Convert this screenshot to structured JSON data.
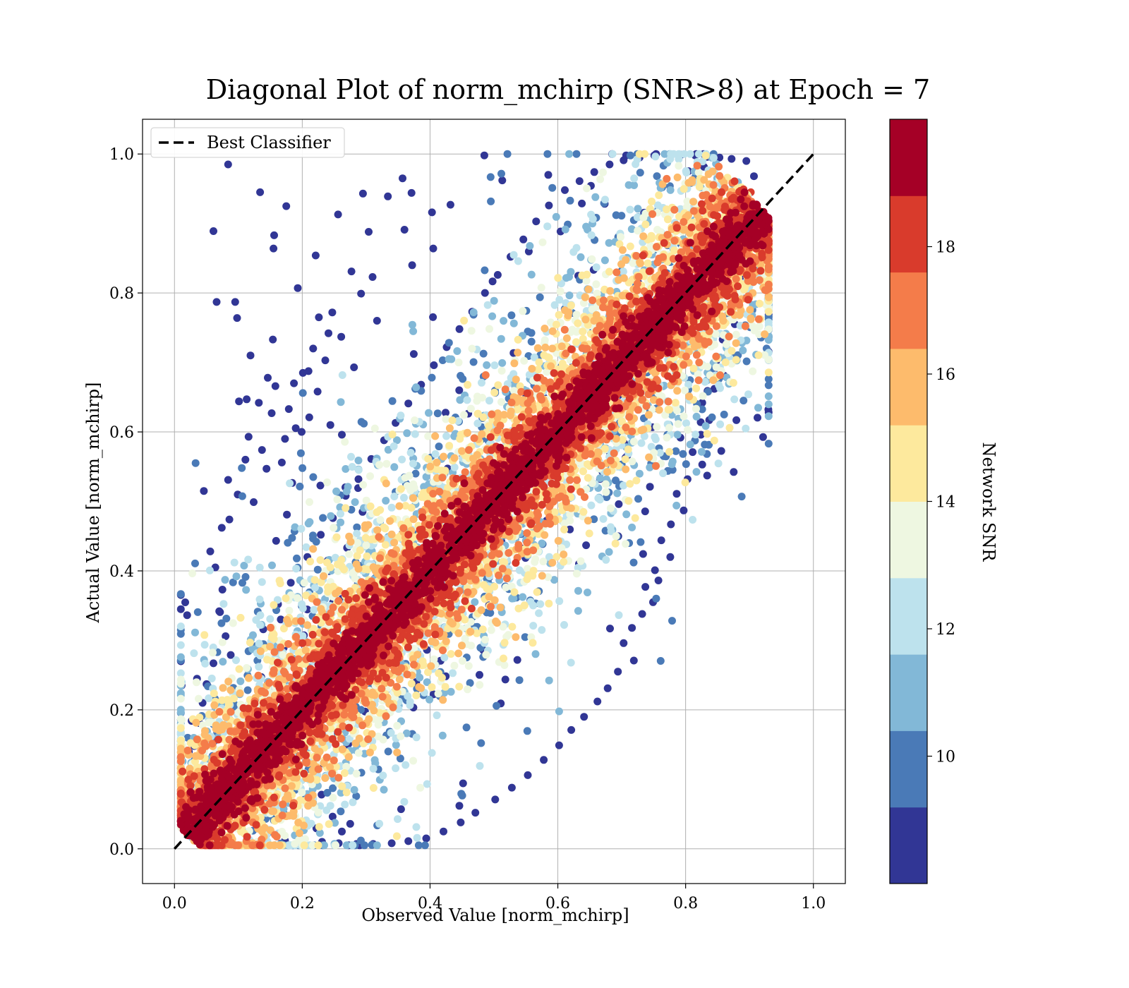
{
  "chart_data": {
    "type": "scatter",
    "title": "Diagonal Plot of norm_mchirp (SNR>8) at Epoch = 7",
    "xlabel": "Observed Value [norm_mchirp]",
    "ylabel": "Actual Value [norm_mchirp]",
    "xlim": [
      -0.05,
      1.05
    ],
    "ylim": [
      -0.05,
      1.05
    ],
    "xticks": [
      "0.0",
      "0.2",
      "0.4",
      "0.6",
      "0.8",
      "1.0"
    ],
    "yticks": [
      "0.0",
      "0.2",
      "0.4",
      "0.6",
      "0.8",
      "1.0"
    ],
    "grid": true,
    "reference_line": {
      "label": "Best Classifier",
      "x": [
        0.0,
        1.0
      ],
      "y": [
        0.0,
        1.0
      ],
      "style": "dashed",
      "color": "#000000"
    },
    "legend_position": "top-left",
    "colorbar": {
      "label": "Network SNR",
      "min": 8,
      "max": 20,
      "ticks": [
        "10",
        "12",
        "14",
        "16",
        "18"
      ],
      "bins": [
        {
          "from": 8,
          "to": 9.2,
          "color": "#313695"
        },
        {
          "from": 9.2,
          "to": 10.4,
          "color": "#4a7ab7"
        },
        {
          "from": 10.4,
          "to": 11.6,
          "color": "#82b8d7"
        },
        {
          "from": 11.6,
          "to": 12.8,
          "color": "#bde2ed"
        },
        {
          "from": 12.8,
          "to": 14.0,
          "color": "#eef7e1"
        },
        {
          "from": 14.0,
          "to": 15.2,
          "color": "#fde99d"
        },
        {
          "from": 15.2,
          "to": 16.4,
          "color": "#fdbb6c"
        },
        {
          "from": 16.4,
          "to": 17.6,
          "color": "#f47c4a"
        },
        {
          "from": 17.6,
          "to": 18.8,
          "color": "#d93b2c"
        },
        {
          "from": 18.8,
          "to": 20,
          "color": "#a50026"
        }
      ]
    },
    "series": [
      {
        "points_note_free": true,
        "points": [
          [
            0.084,
            0.985
          ],
          [
            0.134,
            0.945
          ],
          [
            0.175,
            0.925
          ],
          [
            0.061,
            0.889
          ],
          [
            0.156,
            0.883
          ],
          [
            0.155,
            0.864
          ],
          [
            0.095,
            0.787
          ],
          [
            0.066,
            0.787
          ],
          [
            0.193,
            0.807
          ],
          [
            0.098,
            0.764
          ],
          [
            0.154,
            0.733
          ],
          [
            0.119,
            0.71
          ],
          [
            0.113,
            0.647
          ],
          [
            0.101,
            0.644
          ],
          [
            0.132,
            0.642
          ],
          [
            0.179,
            0.633
          ],
          [
            0.084,
            0.531
          ],
          [
            0.046,
            0.515
          ],
          [
            0.221,
            0.854
          ],
          [
            0.485,
            0.998
          ],
          [
            0.513,
            0.962
          ],
          [
            0.357,
            0.965
          ],
          [
            0.585,
            0.97
          ],
          [
            0.295,
            0.943
          ],
          [
            0.334,
            0.939
          ],
          [
            0.256,
            0.913
          ],
          [
            0.371,
            0.944
          ],
          [
            0.304,
            0.888
          ],
          [
            0.36,
            0.891
          ],
          [
            0.403,
            0.916
          ],
          [
            0.432,
            0.927
          ],
          [
            0.707,
            0.998
          ],
          [
            0.405,
            0.864
          ],
          [
            0.372,
            0.84
          ],
          [
            0.31,
            0.823
          ],
          [
            0.277,
            0.831
          ],
          [
            0.317,
            0.76
          ],
          [
            0.292,
            0.799
          ],
          [
            0.247,
            0.772
          ],
          [
            0.226,
            0.765
          ],
          [
            0.241,
            0.742
          ],
          [
            0.261,
            0.737
          ],
          [
            0.217,
            0.72
          ],
          [
            0.236,
            0.703
          ],
          [
            0.281,
            0.693
          ],
          [
            0.201,
            0.685
          ],
          [
            0.187,
            0.67
          ],
          [
            0.224,
            0.658
          ],
          [
            0.158,
            0.666
          ],
          [
            0.146,
            0.678
          ],
          [
            0.211,
            0.621
          ],
          [
            0.244,
            0.61
          ],
          [
            0.262,
            0.596
          ],
          [
            0.199,
            0.6
          ],
          [
            0.173,
            0.59
          ],
          [
            0.116,
            0.593
          ],
          [
            0.137,
            0.574
          ],
          [
            0.168,
            0.556
          ],
          [
            0.144,
            0.547
          ],
          [
            0.111,
            0.56
          ],
          [
            0.099,
            0.51
          ],
          [
            0.124,
            0.499
          ],
          [
            0.086,
            0.474
          ],
          [
            0.074,
            0.462
          ],
          [
            0.056,
            0.428
          ],
          [
            0.064,
            0.405
          ],
          [
            0.075,
            0.373
          ],
          [
            0.07,
            0.342
          ],
          [
            0.08,
            0.306
          ],
          [
            0.088,
            0.279
          ],
          [
            0.061,
            0.267
          ],
          [
            0.051,
            0.236
          ],
          [
            0.044,
            0.21
          ],
          [
            0.039,
            0.181
          ],
          [
            0.031,
            0.148
          ],
          [
            0.028,
            0.121
          ],
          [
            0.027,
            0.089
          ],
          [
            0.024,
            0.061
          ],
          [
            0.139,
            0.316
          ],
          [
            0.162,
            0.352
          ],
          [
            0.182,
            0.383
          ],
          [
            0.208,
            0.42
          ],
          [
            0.229,
            0.452
          ],
          [
            0.248,
            0.476
          ],
          [
            0.268,
            0.508
          ],
          [
            0.288,
            0.532
          ],
          [
            0.308,
            0.561
          ],
          [
            0.328,
            0.588
          ],
          [
            0.346,
            0.613
          ],
          [
            0.366,
            0.641
          ],
          [
            0.386,
            0.668
          ],
          [
            0.406,
            0.696
          ],
          [
            0.426,
            0.722
          ],
          [
            0.446,
            0.748
          ],
          [
            0.466,
            0.773
          ],
          [
            0.486,
            0.8
          ],
          [
            0.506,
            0.826
          ],
          [
            0.526,
            0.852
          ],
          [
            0.546,
            0.877
          ],
          [
            0.566,
            0.903
          ],
          [
            0.586,
            0.926
          ],
          [
            0.611,
            0.948
          ],
          [
            0.634,
            0.961
          ],
          [
            0.657,
            0.974
          ],
          [
            0.681,
            0.985
          ],
          [
            0.703,
            0.991
          ],
          [
            0.728,
            0.995
          ],
          [
            0.751,
            0.998
          ],
          [
            0.774,
            0.999
          ],
          [
            0.793,
            0.999
          ],
          [
            0.815,
            0.998
          ],
          [
            0.834,
            0.996
          ],
          [
            0.853,
            0.995
          ],
          [
            0.872,
            0.993
          ],
          [
            0.895,
            0.99
          ],
          [
            0.907,
            0.968
          ],
          [
            0.902,
            0.945
          ],
          [
            0.905,
            0.92
          ],
          [
            0.913,
            0.905
          ],
          [
            0.902,
            0.871
          ],
          [
            0.884,
            0.849
          ],
          [
            0.894,
            0.822
          ],
          [
            0.883,
            0.804
          ],
          [
            0.866,
            0.776
          ],
          [
            0.877,
            0.755
          ],
          [
            0.858,
            0.733
          ],
          [
            0.848,
            0.702
          ],
          [
            0.86,
            0.681
          ],
          [
            0.845,
            0.662
          ],
          [
            0.826,
            0.642
          ],
          [
            0.837,
            0.617
          ],
          [
            0.824,
            0.596
          ],
          [
            0.811,
            0.571
          ],
          [
            0.826,
            0.553
          ],
          [
            0.803,
            0.532
          ],
          [
            0.786,
            0.511
          ],
          [
            0.797,
            0.487
          ],
          [
            0.777,
            0.467
          ],
          [
            0.762,
            0.444
          ],
          [
            0.776,
            0.42
          ],
          [
            0.752,
            0.401
          ],
          [
            0.737,
            0.377
          ],
          [
            0.749,
            0.355
          ],
          [
            0.732,
            0.338
          ],
          [
            0.716,
            0.318
          ],
          [
            0.703,
            0.296
          ],
          [
            0.719,
            0.271
          ],
          [
            0.694,
            0.255
          ],
          [
            0.678,
            0.231
          ],
          [
            0.662,
            0.212
          ],
          [
            0.641,
            0.19
          ],
          [
            0.621,
            0.171
          ],
          [
            0.602,
            0.149
          ],
          [
            0.578,
            0.128
          ],
          [
            0.553,
            0.106
          ],
          [
            0.528,
            0.088
          ],
          [
            0.502,
            0.071
          ],
          [
            0.471,
            0.052
          ],
          [
            0.448,
            0.038
          ],
          [
            0.421,
            0.025
          ],
          [
            0.394,
            0.015
          ],
          [
            0.366,
            0.011
          ],
          [
            0.34,
            0.008
          ],
          [
            0.311,
            0.007
          ],
          [
            0.285,
            0.007
          ],
          [
            0.257,
            0.008
          ],
          [
            0.231,
            0.01
          ],
          [
            0.201,
            0.011
          ],
          [
            0.173,
            0.012
          ],
          [
            0.142,
            0.011
          ],
          [
            0.113,
            0.012
          ],
          [
            0.082,
            0.012
          ],
          [
            0.057,
            0.013
          ],
          [
            0.038,
            0.013
          ],
          [
            0.019,
            0.023
          ]
        ]
      }
    ]
  }
}
